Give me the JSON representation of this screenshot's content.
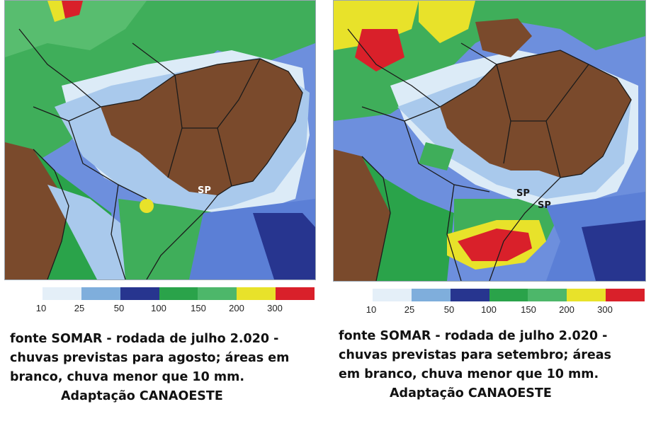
{
  "legend": {
    "ticks": [
      "10",
      "25",
      "50",
      "100",
      "150",
      "200",
      "300"
    ],
    "colors": [
      "#e4eff8",
      "#7faedc",
      "#27358f",
      "#2aa34a",
      "#4db76a",
      "#e8e22a",
      "#d9202a"
    ]
  },
  "palette": {
    "ocean_blue": "#5b7fd6",
    "light_blue": "#a8c8ec",
    "dry_brown": "#7a4a2c",
    "continent_brown": "#7a4a2c",
    "white_low_rain": "#ffffff",
    "green": "#3fae5a",
    "border_black": "#1b1b1b"
  },
  "panels": [
    {
      "id": "agosto",
      "map_label": "SP",
      "caption_lines": [
        "fonte SOMAR - rodada de julho 2.020 -",
        "chuvas previstas para agosto; áreas em",
        "branco, chuva menor que 10 mm."
      ],
      "credit": "Adaptação CANAOESTE"
    },
    {
      "id": "setembro",
      "map_label": "SP",
      "map_label_2": "SP",
      "caption_lines": [
        "fonte SOMAR - rodada de julho 2.020 -",
        "chuvas previstas para setembro; áreas",
        "em branco, chuva menor que 10 mm."
      ],
      "credit": "Adaptação CANAOESTE"
    }
  ]
}
